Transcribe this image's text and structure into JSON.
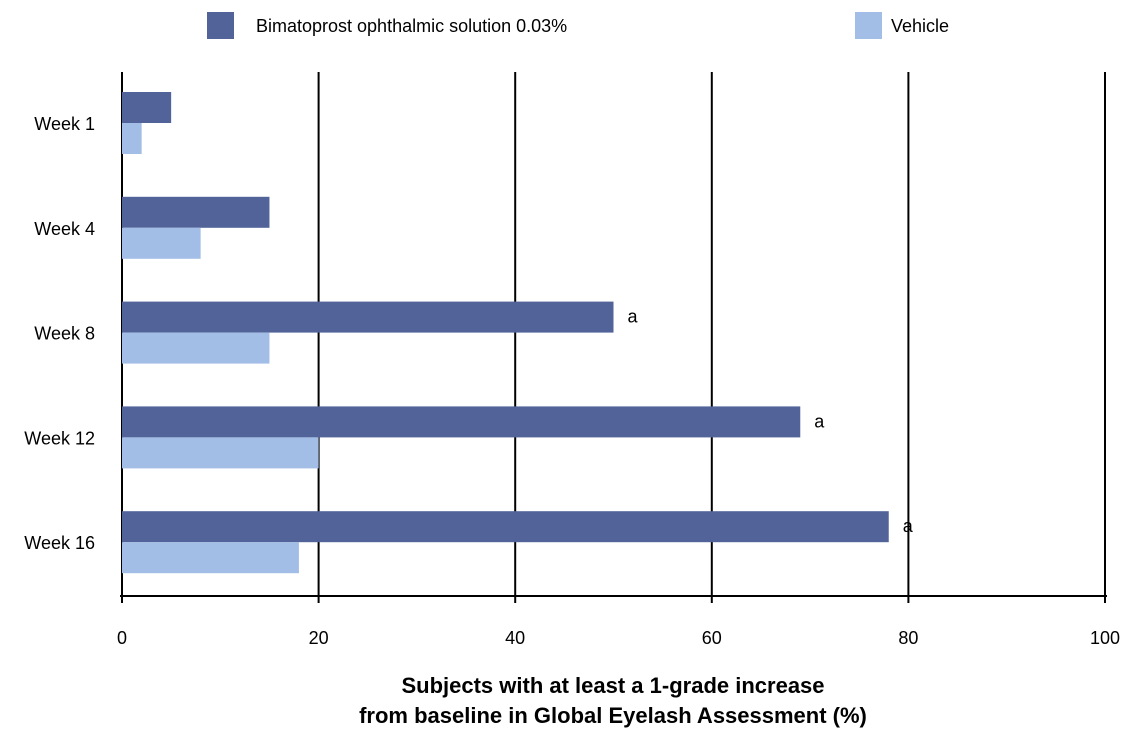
{
  "chart_data": {
    "type": "bar",
    "orientation": "horizontal",
    "categories": [
      "Week 1",
      "Week 4",
      "Week 8",
      "Week 12",
      "Week 16"
    ],
    "series": [
      {
        "name": "Bimatoprost ophthalmic solution 0.03%",
        "color": "#52639a",
        "values": [
          5,
          15,
          50,
          69,
          78
        ],
        "annotations": [
          "",
          "",
          "a",
          "a",
          "a"
        ]
      },
      {
        "name": "Vehicle",
        "color": "#a3bee6",
        "values": [
          2,
          8,
          15,
          20,
          18
        ],
        "annotations": [
          "",
          "",
          "",
          "",
          ""
        ]
      }
    ],
    "xlim": [
      0,
      100
    ],
    "xticks": [
      "0",
      "20",
      "40",
      "60",
      "80",
      "100"
    ],
    "xlabel_lines": [
      "Subjects with at least a 1-grade increase",
      "from baseline in Global Eyelash Assessment (%)"
    ],
    "grid": true,
    "legend_position": "top"
  }
}
